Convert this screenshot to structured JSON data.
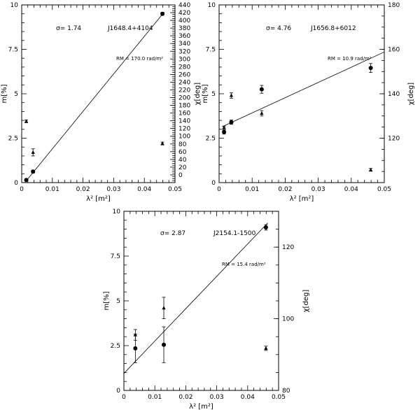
{
  "chart_data": [
    {
      "type": "scatter",
      "source": "J1648.4+4104",
      "sigma_label": "σ= 1.74",
      "rm_label": "RM = 170.0 rad/m²",
      "xlabel": "λ² [m²]",
      "ylabel_left": "m[%]",
      "ylabel_right": "",
      "xlim": [
        0,
        0.05
      ],
      "ylim_left": [
        0,
        10
      ],
      "ylim_right": [
        -20,
        440
      ],
      "x_ticks": [
        "0",
        "0.01",
        "0.02",
        "0.03",
        "0.04",
        "0.05"
      ],
      "y_ticks_left": [
        "0",
        "2.5",
        "5",
        "7.5",
        "10"
      ],
      "y_ticks_right": [
        "0",
        "20",
        "40",
        "60",
        "80",
        "100",
        "120",
        "140",
        "160",
        "180",
        "200",
        "220",
        "240",
        "260",
        "280",
        "300",
        "320",
        "340",
        "360",
        "380",
        "400",
        "420",
        "440"
      ],
      "series": [
        {
          "marker": "circle",
          "points": [
            {
              "x": 0.0015,
              "y": 0.15,
              "err": 0.05
            },
            {
              "x": 0.0037,
              "y": 0.62,
              "err": 0.08
            },
            {
              "x": 0.0459,
              "y": 9.5,
              "err": 0.08
            }
          ]
        },
        {
          "marker": "triangle",
          "points": [
            {
              "x": 0.0015,
              "y": 3.45,
              "err": 0.08
            },
            {
              "x": 0.0037,
              "y": 1.7,
              "err": 0.2
            },
            {
              "x": 0.0459,
              "y": 2.2,
              "err": 0.08
            }
          ]
        }
      ],
      "fit": {
        "x1": 0.001,
        "y1": 0.0,
        "x2": 0.0465,
        "y2": 9.6
      }
    },
    {
      "type": "scatter",
      "source": "J1656.8+6012",
      "sigma_label": "σ= 4.76",
      "rm_label": "RM = 10.9 rad/m²",
      "xlabel": "λ² [m²]",
      "ylabel_left": "χ[deg]\nm[%]",
      "ylabel_right": "χ[deg]",
      "xlim": [
        0,
        0.05
      ],
      "ylim_left": [
        0,
        10
      ],
      "ylim_right": [
        100,
        180
      ],
      "x_ticks": [
        "0",
        "0.01",
        "0.02",
        "0.03",
        "0.04",
        "0.05"
      ],
      "y_ticks_left": [
        "0",
        "2.5",
        "5",
        "7.5",
        "10"
      ],
      "y_ticks_right": [
        "120",
        "140",
        "160",
        "180"
      ],
      "series": [
        {
          "marker": "circle",
          "points": [
            {
              "x": 0.0015,
              "y": 2.85,
              "err": 0.12
            },
            {
              "x": 0.0037,
              "y": 3.4,
              "err": 0.12
            },
            {
              "x": 0.0129,
              "y": 5.25,
              "err": 0.22
            },
            {
              "x": 0.0459,
              "y": 6.45,
              "err": 0.25
            }
          ]
        },
        {
          "marker": "triangle",
          "points": [
            {
              "x": 0.0015,
              "y": 3.1,
              "err": 0.08
            },
            {
              "x": 0.0037,
              "y": 4.9,
              "err": 0.15
            },
            {
              "x": 0.0129,
              "y": 3.9,
              "err": 0.15
            },
            {
              "x": 0.0459,
              "y": 0.72,
              "err": 0.08
            }
          ]
        }
      ],
      "fit": {
        "x1": 0.001,
        "y1": 3.15,
        "x2": 0.05,
        "y2": 7.35
      }
    },
    {
      "type": "scatter",
      "source": "J2154.1-1500",
      "sigma_label": "σ= 2.87",
      "rm_label": "RM = 15.4 rad/m²",
      "xlabel": "λ² [m²]",
      "ylabel_left": "m[%]",
      "ylabel_right": "χ[deg]",
      "xlim": [
        0,
        0.05
      ],
      "ylim_left": [
        0,
        10
      ],
      "ylim_right": [
        80,
        130
      ],
      "x_ticks": [
        "0",
        "0.01",
        "0.02",
        "0.03",
        "0.04",
        "0.05"
      ],
      "y_ticks_left": [
        "0",
        "2.5",
        "5",
        "7.5",
        "10"
      ],
      "y_ticks_right": [
        "80",
        "100",
        "120"
      ],
      "series": [
        {
          "marker": "circle",
          "points": [
            {
              "x": 0.0037,
              "y": 2.35,
              "err": 0.8
            },
            {
              "x": 0.0129,
              "y": 2.55,
              "err": 1.0
            },
            {
              "x": 0.0459,
              "y": 9.1,
              "err": 0.15
            }
          ]
        },
        {
          "marker": "triangle",
          "points": [
            {
              "x": 0.0037,
              "y": 3.1,
              "err": 0.3
            },
            {
              "x": 0.0129,
              "y": 4.6,
              "err": 0.6
            },
            {
              "x": 0.0459,
              "y": 2.35,
              "err": 0.12
            }
          ]
        }
      ],
      "fit": {
        "x1": 0.0,
        "y1": 0.95,
        "x2": 0.0465,
        "y2": 9.35
      }
    }
  ]
}
